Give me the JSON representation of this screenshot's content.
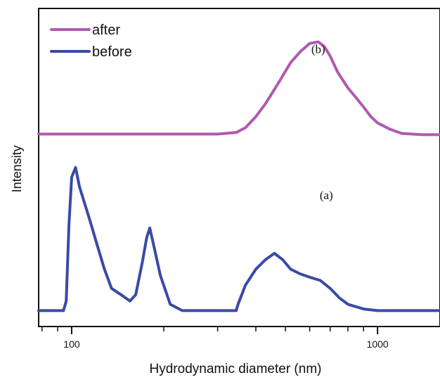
{
  "chart_data": {
    "type": "line",
    "xlabel": "Hydrodynamic diameter (nm)",
    "ylabel": "Intensity",
    "x_scale": "log",
    "xlim": [
      78,
      1600
    ],
    "ylim": [
      0,
      1
    ],
    "xticks": [
      {
        "value": 100,
        "label": "100"
      },
      {
        "value": 1000,
        "label": "1000"
      }
    ],
    "minor_xticks": [
      80,
      90,
      200,
      300,
      400,
      500,
      600,
      700,
      800,
      900
    ],
    "grid": false,
    "legend_position": "top-left",
    "annotations": [
      {
        "text": "(b)",
        "x": 640,
        "y": 0.86
      },
      {
        "text": "(a)",
        "x": 680,
        "y": 0.4
      }
    ],
    "series": [
      {
        "name": "after",
        "color": "#b05ab0",
        "x": [
          78,
          300,
          345,
          370,
          400,
          430,
          470,
          520,
          560,
          600,
          640,
          670,
          700,
          740,
          800,
          850,
          900,
          950,
          1000,
          1100,
          1200,
          1400,
          1600
        ],
        "y": [
          0.605,
          0.605,
          0.61,
          0.625,
          0.66,
          0.7,
          0.76,
          0.83,
          0.865,
          0.89,
          0.895,
          0.88,
          0.85,
          0.8,
          0.75,
          0.72,
          0.69,
          0.66,
          0.64,
          0.62,
          0.607,
          0.603,
          0.603
        ]
      },
      {
        "name": "before",
        "color": "#3a4aa5",
        "x": [
          78,
          94,
          96,
          98,
          100,
          103,
          106,
          110,
          115,
          120,
          128,
          135,
          145,
          155,
          162,
          170,
          176,
          180,
          185,
          195,
          210,
          230,
          300,
          345,
          350,
          370,
          400,
          430,
          460,
          490,
          520,
          560,
          600,
          650,
          700,
          750,
          800,
          900,
          1000,
          1200,
          1600
        ],
        "y": [
          0.05,
          0.05,
          0.08,
          0.32,
          0.47,
          0.5,
          0.44,
          0.39,
          0.33,
          0.27,
          0.18,
          0.12,
          0.1,
          0.08,
          0.1,
          0.2,
          0.28,
          0.31,
          0.26,
          0.16,
          0.07,
          0.05,
          0.05,
          0.05,
          0.07,
          0.13,
          0.18,
          0.21,
          0.23,
          0.21,
          0.18,
          0.165,
          0.155,
          0.145,
          0.12,
          0.09,
          0.07,
          0.055,
          0.05,
          0.05,
          0.05
        ]
      }
    ]
  }
}
